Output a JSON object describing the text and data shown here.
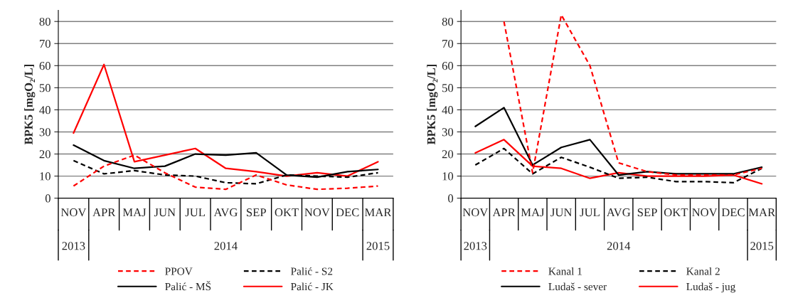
{
  "chart_data": [
    {
      "type": "line",
      "ylabel": "BPK5 [mgO₂/L]",
      "categories": [
        "NOV",
        "APR",
        "MAJ",
        "JUN",
        "JUL",
        "AVG",
        "SEP",
        "OKT",
        "NOV",
        "DEC",
        "MAR"
      ],
      "ylim": [
        0,
        85
      ],
      "yticks": [
        0,
        10,
        20,
        30,
        40,
        50,
        60,
        70,
        80
      ],
      "grid": "y",
      "legend": "bottom",
      "annotations": [
        "2013",
        "2014",
        "2015"
      ],
      "series": [
        {
          "name": "PPOV",
          "color": "#ff0000",
          "line_style": "dashed",
          "values": [
            5.5,
            14.5,
            19.5,
            11.5,
            5,
            4,
            10.5,
            6,
            4,
            4.5,
            5.5
          ]
        },
        {
          "name": "Palić - S2",
          "color": "#000000",
          "line_style": "dashed",
          "values": [
            17,
            11,
            12.5,
            10.5,
            10,
            7,
            6.5,
            10.5,
            10,
            9.5,
            11.5
          ]
        },
        {
          "name": "Palić - MŠ",
          "color": "#000000",
          "line_style": "solid",
          "values": [
            24,
            17,
            13.5,
            14.5,
            20,
            19.5,
            20.5,
            10.5,
            9.5,
            12,
            13
          ]
        },
        {
          "name": "Palić - JK",
          "color": "#ff0000",
          "line_style": "solid",
          "values": [
            29.5,
            60.5,
            16.5,
            19.5,
            22.5,
            13.5,
            12,
            10,
            11.5,
            10,
            16.5
          ]
        }
      ]
    },
    {
      "type": "line",
      "ylabel": "BPK5 [mgO₂/L]",
      "categories": [
        "NOV",
        "APR",
        "MAJ",
        "JUN",
        "JUL",
        "AVG",
        "SEP",
        "OKT",
        "NOV",
        "DEC",
        "MAR"
      ],
      "ylim": [
        0,
        85
      ],
      "yticks": [
        0,
        10,
        20,
        30,
        40,
        50,
        60,
        70,
        80
      ],
      "grid": "y",
      "legend": "bottom",
      "annotations": [
        "2013",
        "2014",
        "2015"
      ],
      "series": [
        {
          "name": "Kanal 1",
          "color": "#ff0000",
          "line_style": "dashed",
          "values": [
            null,
            80,
            11.5,
            83,
            60,
            16,
            12,
            10.5,
            10.5,
            10.5,
            13.5
          ]
        },
        {
          "name": "Kanal 2",
          "color": "#000000",
          "line_style": "dashed",
          "values": [
            15,
            22.5,
            11,
            18.5,
            14,
            9,
            9.5,
            7.5,
            7.5,
            7,
            13.5
          ]
        },
        {
          "name": "Ludaš - sever",
          "color": "#000000",
          "line_style": "solid",
          "values": [
            32.5,
            41,
            15,
            23,
            26.5,
            10.5,
            12,
            11,
            11,
            11,
            14
          ]
        },
        {
          "name": "Ludaš - jug",
          "color": "#ff0000",
          "line_style": "solid",
          "values": [
            20.5,
            26.5,
            14.5,
            13.5,
            9,
            11.5,
            10,
            10,
            10,
            10.5,
            6.5
          ]
        }
      ]
    }
  ]
}
